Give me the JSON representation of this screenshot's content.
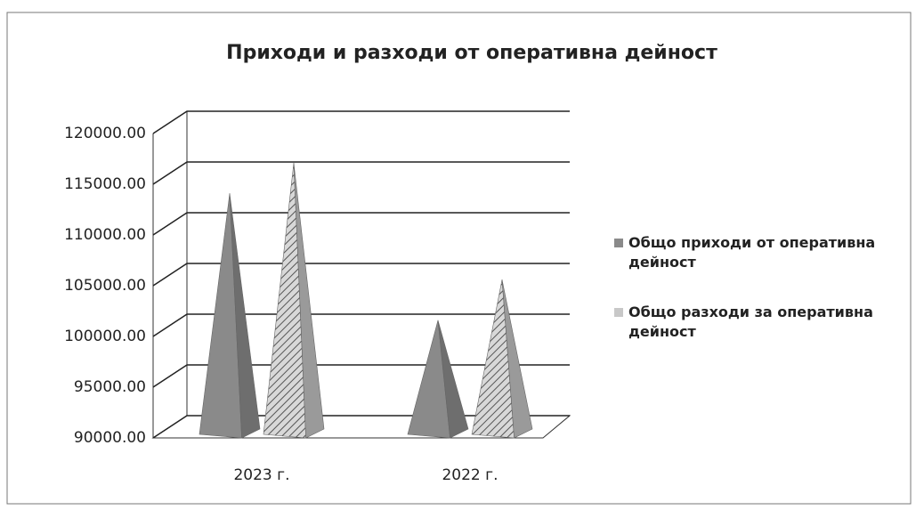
{
  "chart_data": {
    "type": "pyramid3d",
    "title": "Приходи и разходи от оперативна дейност",
    "categories": [
      "2023 г.",
      "2022 г."
    ],
    "series": [
      {
        "name": "Общо приходи от оперативна дейност",
        "color": "#8a8a8a",
        "values": [
          113000,
          100500
        ]
      },
      {
        "name": "Общо разходи за оперативна дейност",
        "color": "#c8c8c8",
        "values": [
          116000,
          104500
        ]
      }
    ],
    "ylim": [
      90000,
      120000
    ],
    "yticks": [
      {
        "value": 90000,
        "label": "90000.00"
      },
      {
        "value": 95000,
        "label": "95000.00"
      },
      {
        "value": 100000,
        "label": "100000.00"
      },
      {
        "value": 105000,
        "label": "105000.00"
      },
      {
        "value": 110000,
        "label": "110000.00"
      },
      {
        "value": 115000,
        "label": "115000.00"
      },
      {
        "value": 120000,
        "label": "120000.00"
      }
    ],
    "grid": true,
    "legend": "right"
  }
}
